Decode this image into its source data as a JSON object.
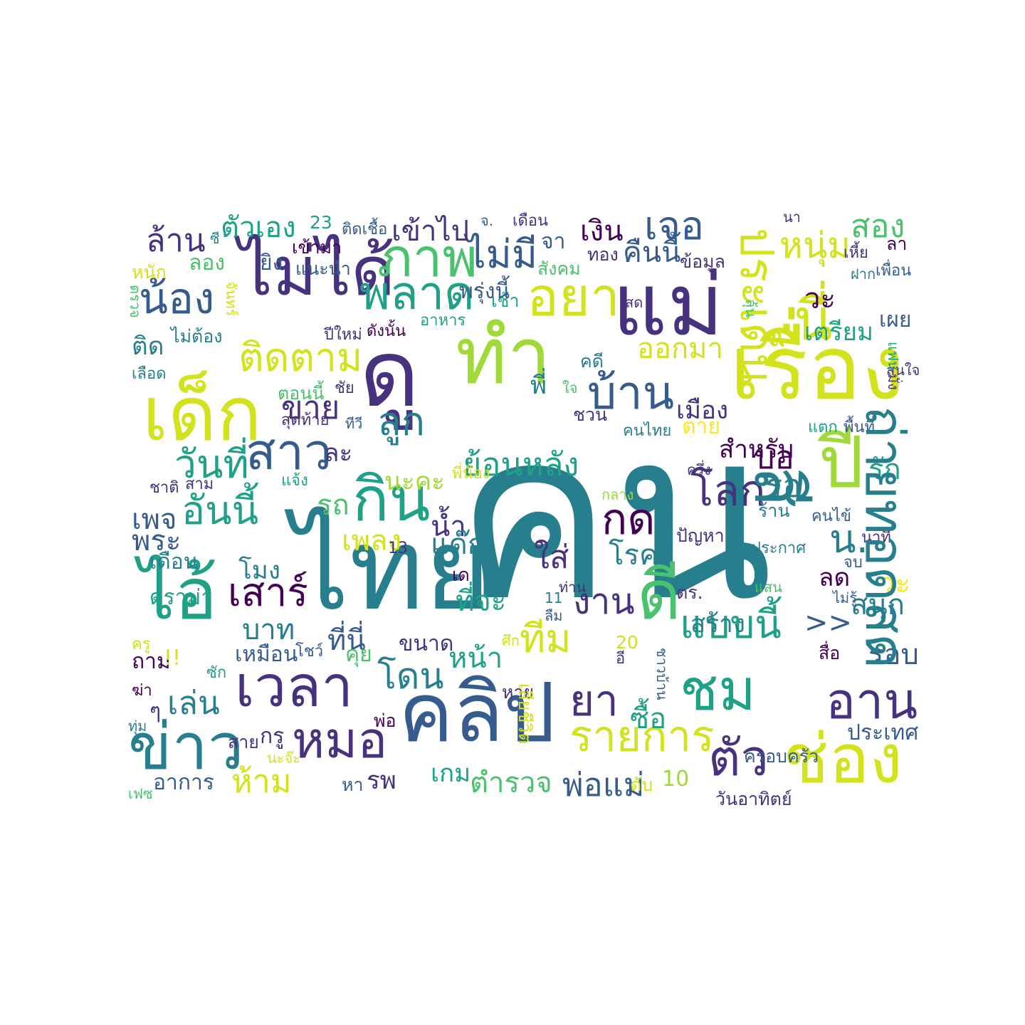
{
  "palette": {
    "c0": "#440154",
    "c1": "#46327e",
    "c2": "#365c8d",
    "c3": "#277f8e",
    "c4": "#1fa187",
    "c5": "#4ac16d",
    "c6": "#a0da39",
    "c7": "#d2e21b",
    "c8": "#fde725"
  },
  "words": [
    {
      "text": "คน",
      "color": "c3"
    },
    {
      "text": "ไทย",
      "color": "c3"
    },
    {
      "text": "แม่",
      "color": "c1"
    },
    {
      "text": "เรื่อง",
      "color": "c7"
    },
    {
      "text": "คลิป",
      "color": "c2"
    },
    {
      "text": "ดู",
      "color": "c1"
    },
    {
      "text": "ทำ",
      "color": "c6"
    },
    {
      "text": "เด็ก",
      "color": "c7"
    },
    {
      "text": "ไม่ได้",
      "color": "c1"
    },
    {
      "text": "ไอ้",
      "color": "c4"
    },
    {
      "text": "ข่าว",
      "color": "c3"
    },
    {
      "text": "ช่อง",
      "color": "c7"
    },
    {
      "text": "ปี",
      "color": "c6"
    },
    {
      "text": "กิน",
      "color": "c4"
    },
    {
      "text": "เวลา",
      "color": "c1"
    },
    {
      "text": "หมอ",
      "color": "c1"
    },
    {
      "text": "ชม",
      "color": "c4"
    },
    {
      "text": "ดี",
      "color": "c5"
    },
    {
      "text": "ตัว",
      "color": "c1"
    },
    {
      "text": "ภาพ",
      "color": "c5"
    },
    {
      "text": "อยา",
      "color": "c7"
    },
    {
      "text": "นี่",
      "color": "c7"
    },
    {
      "text": "บ้าน",
      "color": "c2"
    },
    {
      "text": "ลูก",
      "color": "c3"
    },
    {
      "text": "สาว",
      "color": "c2"
    },
    {
      "text": "พลาด",
      "color": "c4"
    },
    {
      "text": "อาน",
      "color": "c1"
    },
    {
      "text": "ยา",
      "color": "c1"
    },
    {
      "text": "ไม่มี",
      "color": "c2"
    },
    {
      "text": "น้อง",
      "color": "c2"
    },
    {
      "text": "ติดตาม",
      "color": "c7"
    },
    {
      "text": "วันที่",
      "color": "c4"
    },
    {
      "text": "อันนี้",
      "color": "c4"
    },
    {
      "text": "เสาร์",
      "color": "c0"
    },
    {
      "text": "ล้าน",
      "color": "c1"
    },
    {
      "text": "รายการ",
      "color": "c7"
    },
    {
      "text": "แบบนี้",
      "color": "c4"
    },
    {
      "text": "โลก",
      "color": "c1"
    },
    {
      "text": "กด",
      "color": "c0"
    },
    {
      "text": "เจอ",
      "color": "c2"
    },
    {
      "text": "หนุ่ม",
      "color": "c7"
    },
    {
      "text": "ขาย",
      "color": "c1"
    },
    {
      "text": "ทีม",
      "color": "c7"
    },
    {
      "text": "โดน",
      "color": "c3"
    },
    {
      "text": "เล่น",
      "color": "c3"
    },
    {
      "text": "ห้าม",
      "color": "c7"
    },
    {
      "text": "ตำรวจ",
      "color": "c5"
    },
    {
      "text": "พ่อแม่",
      "color": "c2"
    },
    {
      "text": "งาน",
      "color": "c1"
    },
    {
      "text": "ย้อนหลัง",
      "color": "c4"
    },
    {
      "text": "ออกมา",
      "color": "c7"
    },
    {
      "text": "คืนนี้",
      "color": "c2"
    },
    {
      "text": "สอง",
      "color": "c5"
    },
    {
      "text": "ตัวเอง",
      "color": "c4"
    },
    {
      "text": "เข้าไป",
      "color": "c1"
    },
    {
      "text": "เงิน",
      "color": "c0"
    },
    {
      "text": "น้ำ",
      "color": "c1"
    },
    {
      "text": "เพลง",
      "color": "c7"
    },
    {
      "text": "แด๊ก",
      "color": "c3"
    },
    {
      "text": "รถ",
      "color": "c5"
    },
    {
      "text": "ละ",
      "color": "c1"
    },
    {
      "text": "นะคะ",
      "color": "c6"
    },
    {
      "text": "สำหรับ",
      "color": "c0"
    },
    {
      "text": "เมือง",
      "color": "c1"
    },
    {
      "text": "ตาย",
      "color": "c8"
    },
    {
      "text": "บอ",
      "color": "c0"
    },
    {
      "text": "รอ",
      "color": "c3"
    },
    {
      "text": "รัก",
      "color": "c4"
    },
    {
      "text": "น.",
      "color": "c3"
    },
    {
      "text": "วะ",
      "color": "c8"
    },
    {
      "text": "วะ",
      "color": "c0"
    },
    {
      "text": "สนุก",
      "color": "c3"
    },
    {
      "text": "ลด",
      "color": "c0"
    },
    {
      "text": "รอบ",
      "color": "c2"
    },
    {
      "text": "บาท",
      "color": "c3"
    },
    {
      "text": "ที่นี่",
      "color": "c2"
    },
    {
      "text": "หน้า",
      "color": "c4"
    },
    {
      "text": "ใส่",
      "color": "c1"
    },
    {
      "text": "โรค",
      "color": "c3"
    },
    {
      "text": "ที่จะ",
      "color": "c4"
    },
    {
      "text": "สร้าง",
      "color": "c3"
    },
    {
      "text": "ซื้อ",
      "color": "c4"
    },
    {
      "text": "ติด",
      "color": "c3"
    },
    {
      "text": "เตรียม",
      "color": "c4"
    },
    {
      "text": "เผย",
      "color": "c2"
    },
    {
      "text": "เพจ",
      "color": "c2"
    },
    {
      "text": "พระ",
      "color": "c2"
    },
    {
      "text": "โมง",
      "color": "c3"
    },
    {
      "text": "เดือน",
      "color": "c3"
    },
    {
      "text": "ดราม่า",
      "color": "c4"
    },
    {
      "text": "เหมือน",
      "color": "c2"
    },
    {
      "text": "ถาม",
      "color": "c0"
    },
    {
      "text": "คุย",
      "color": "c5"
    },
    {
      "text": "เกม",
      "color": "c4"
    },
    {
      "text": "รพ",
      "color": "c1"
    },
    {
      "text": "หา",
      "color": "c2"
    },
    {
      "text": "อาการ",
      "color": "c2"
    },
    {
      "text": "ขนาด",
      "color": "c1"
    },
    {
      "text": "พ่อ",
      "color": "c0"
    },
    {
      "text": "กรู",
      "color": "c1"
    },
    {
      "text": "สาย",
      "color": "c1"
    },
    {
      "text": "ประเทศ",
      "color": "c2"
    },
    {
      "text": "ครอบครัว",
      "color": "c2"
    },
    {
      "text": "วันอาทิตย์",
      "color": "c1"
    },
    {
      "text": "10",
      "color": "c6"
    },
    {
      "text": "ดับ",
      "color": "c7"
    },
    {
      "text": "ข้อมูล",
      "color": "c1"
    },
    {
      "text": "จา",
      "color": "c2"
    },
    {
      "text": "ทอง",
      "color": "c1"
    },
    {
      "text": "สังคม",
      "color": "c5"
    },
    {
      "text": "เข้ามา",
      "color": "c0"
    },
    {
      "text": "แนะนำ",
      "color": "c2"
    },
    {
      "text": "ยิง",
      "color": "c2"
    },
    {
      "text": "ลอง",
      "color": "c5"
    },
    {
      "text": "ซี",
      "color": "c3"
    },
    {
      "text": "23",
      "color": "c4"
    },
    {
      "text": "ติดเชื้อ",
      "color": "c2"
    },
    {
      "text": "จ.",
      "color": "c2"
    },
    {
      "text": "เดือน",
      "color": "c1"
    },
    {
      "text": "นา",
      "color": "c1"
    },
    {
      "text": "ลา",
      "color": "c0"
    },
    {
      "text": "เพื่อน",
      "color": "c2"
    },
    {
      "text": "เหี้ย",
      "color": "c1"
    },
    {
      "text": "ฝาก",
      "color": "c3"
    },
    {
      "text": "หนัก",
      "color": "c7"
    },
    {
      "text": "ไม่ต้อง",
      "color": "c3"
    },
    {
      "text": "เลือด",
      "color": "c3"
    },
    {
      "text": "ปีใหม่",
      "color": "c1"
    },
    {
      "text": "ดังนั้น",
      "color": "c0"
    },
    {
      "text": "อาหาร",
      "color": "c4"
    },
    {
      "text": "เช้า",
      "color": "c4"
    },
    {
      "text": "สด",
      "color": "c1"
    },
    {
      "text": "คดี",
      "color": "c3"
    },
    {
      "text": "พี่",
      "color": "c3"
    },
    {
      "text": "ตอนนี้",
      "color": "c5"
    },
    {
      "text": "ชัย",
      "color": "c1"
    },
    {
      "text": "ทีวี",
      "color": "c2"
    },
    {
      "text": "สุดท้าย",
      "color": "c1"
    },
    {
      "text": "ชวน",
      "color": "c1"
    },
    {
      "text": "คนไทย",
      "color": "c3"
    },
    {
      "text": "แตก",
      "color": "c4"
    },
    {
      "text": "พื้นที่",
      "color": "c2"
    },
    {
      "text": "สนใจ",
      "color": "c1"
    },
    {
      "text": "ใจ",
      "color": "c5"
    },
    {
      "text": "ชาติ",
      "color": "c1"
    },
    {
      "text": "สาม",
      "color": "c1"
    },
    {
      "text": "แจ้ง",
      "color": "c4"
    },
    {
      "text": "พี่น้อง",
      "color": "c7"
    },
    {
      "text": "ครึ่ง",
      "color": "c1"
    },
    {
      "text": "กลาง",
      "color": "c6"
    },
    {
      "text": "13",
      "color": "c1"
    },
    {
      "text": "ปัญหา",
      "color": "c1"
    },
    {
      "text": "ร้าน",
      "color": "c3"
    },
    {
      "text": "คนไข้",
      "color": "c2"
    },
    {
      "text": "ประกาศ",
      "color": "c3"
    },
    {
      "text": "นาที",
      "color": "c1"
    },
    {
      "text": "เด",
      "color": "c0"
    },
    {
      "text": "ท่าน",
      "color": "c1"
    },
    {
      "text": "11",
      "color": "c3"
    },
    {
      "text": "ลืม",
      "color": "c2"
    },
    {
      "text": "ตร.",
      "color": "c1"
    },
    {
      "text": "แสน",
      "color": "c5"
    },
    {
      "text": "ไม่รู้",
      "color": "c2"
    },
    {
      "text": "จบ",
      "color": "c2"
    },
    {
      "text": "ศึก",
      "color": "c7"
    },
    {
      "text": "20",
      "color": "c7"
    },
    {
      "text": "อี",
      "color": "c1"
    },
    {
      "text": "หาย",
      "color": "c1"
    },
    {
      "text": "สื่อ",
      "color": "c0"
    },
    {
      "text": "โชว์",
      "color": "c2"
    },
    {
      "text": "ซัก",
      "color": "c4"
    },
    {
      "text": "ครู",
      "color": "c7"
    },
    {
      "text": "ฆ่า",
      "color": "c0"
    },
    {
      "text": "ทุ่ม",
      "color": "c3"
    },
    {
      "text": "นะจ๊ะ",
      "color": "c7"
    },
    {
      "text": "เฟซ",
      "color": "c5"
    },
    {
      "text": "สี",
      "color": "c3"
    },
    {
      "text": "ถ่ายทอดสด",
      "color": "c3"
    },
    {
      "text": "ประเด็น",
      "color": "c7"
    },
    {
      "text": "แฟน",
      "color": "c4"
    },
    {
      "text": "มั่ง",
      "color": "c1"
    },
    {
      "text": "ลุ้น",
      "color": "c5"
    },
    {
      "text": "ตรวจ",
      "color": "c5"
    },
    {
      "text": "จันทร์",
      "color": "c7"
    },
    {
      "text": "เสียชีวิต",
      "color": "c7"
    },
    {
      "text": "ชาวบ้าน",
      "color": "c2"
    },
    {
      "text": "พรุ่งนี้",
      "color": "c2"
    },
    {
      "text": ">>",
      "color": "c2"
    },
    {
      "text": "!!",
      "color": "c7"
    },
    {
      "text": "ๆ",
      "color": "c1"
    },
    {
      "text": "ฯ",
      "color": "c7"
    }
  ]
}
